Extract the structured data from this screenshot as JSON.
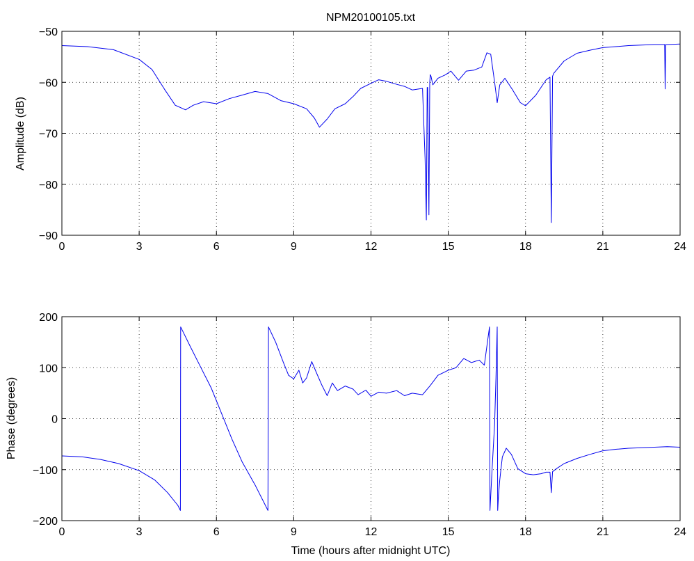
{
  "figure_title": "NPM20100105.txt",
  "colors": {
    "series": "#0000ee",
    "axes": "#000000",
    "background": "#ffffff"
  },
  "chart_data": [
    {
      "type": "line",
      "title": "NPM20100105.txt",
      "xlabel": "",
      "ylabel": "Amplitude (dB)",
      "xlim": [
        0,
        24
      ],
      "ylim": [
        -90,
        -50
      ],
      "xticks": [
        0,
        3,
        6,
        9,
        12,
        15,
        18,
        21,
        24
      ],
      "yticks": [
        -90,
        -80,
        -70,
        -60,
        -50
      ],
      "grid": true,
      "series": [
        {
          "x": [
            0,
            1,
            2,
            3,
            3.5,
            4,
            4.4,
            4.8,
            5.1,
            5.5,
            6,
            6.5,
            7,
            7.5,
            8,
            8.5,
            9,
            9.5,
            9.8,
            10,
            10.3,
            10.6,
            11,
            11.3,
            11.6,
            12,
            12.3,
            12.6,
            13,
            13.3,
            13.6,
            14,
            14.1,
            14.15,
            14.18,
            14.2,
            14.25,
            14.28,
            14.3,
            14.33,
            14.4,
            14.6,
            14.9,
            15.1,
            15.4,
            15.7,
            16,
            16.3,
            16.5,
            16.65,
            16.8,
            16.9,
            17,
            17.2,
            17.5,
            17.8,
            18,
            18.4,
            18.8,
            18.95,
            19,
            19.05,
            19.1,
            19.5,
            20,
            20.5,
            21,
            21.5,
            22,
            22.5,
            23,
            23.4,
            23.42,
            23.44,
            23.5,
            24
          ],
          "y": [
            -52.8,
            -53,
            -53.6,
            -55.5,
            -57.5,
            -61.5,
            -64.5,
            -65.4,
            -64.5,
            -63.8,
            -64.2,
            -63.2,
            -62.5,
            -61.8,
            -62.2,
            -63.6,
            -64.2,
            -65.2,
            -67,
            -68.8,
            -67.2,
            -65.2,
            -64.2,
            -62.8,
            -61.2,
            -60.2,
            -59.5,
            -59.8,
            -60.4,
            -60.8,
            -61.5,
            -61.2,
            -75,
            -87,
            -61,
            -61,
            -86,
            -60,
            -58.5,
            -58.8,
            -60.5,
            -59.2,
            -58.5,
            -57.8,
            -59.6,
            -57.8,
            -57.6,
            -57,
            -54.2,
            -54.5,
            -60,
            -64,
            -60.5,
            -59.2,
            -61.5,
            -64,
            -64.6,
            -62.5,
            -59.5,
            -59,
            -87.5,
            -58.8,
            -58.2,
            -55.8,
            -54.3,
            -53.7,
            -53.2,
            -53,
            -52.8,
            -52.7,
            -52.6,
            -52.6,
            -61.3,
            -52.6,
            -52.6,
            -52.5
          ]
        }
      ]
    },
    {
      "type": "line",
      "title": "",
      "xlabel": "Time (hours after midnight UTC)",
      "ylabel": "Phase (degrees)",
      "xlim": [
        0,
        24
      ],
      "ylim": [
        -200,
        200
      ],
      "xticks": [
        0,
        3,
        6,
        9,
        12,
        15,
        18,
        21,
        24
      ],
      "yticks": [
        -200,
        -100,
        0,
        100,
        200
      ],
      "grid": true,
      "series": [
        {
          "x": [
            0,
            0.8,
            1.5,
            2.2,
            3,
            3.6,
            4.1,
            4.5,
            4.6,
            4.61,
            5,
            5.4,
            5.8,
            6.2,
            6.6,
            7,
            7.5,
            7.9,
            8,
            8.02,
            8.3,
            8.6,
            8.8,
            9,
            9.2,
            9.35,
            9.5,
            9.7,
            9.9,
            10.1,
            10.3,
            10.5,
            10.7,
            11,
            11.3,
            11.5,
            11.8,
            12,
            12.3,
            12.6,
            13,
            13.3,
            13.6,
            14,
            14.3,
            14.6,
            15,
            15.3,
            15.6,
            15.9,
            16.2,
            16.4,
            16.6,
            16.62,
            16.7,
            16.8,
            16.85,
            16.9,
            16.92,
            16.95,
            17,
            17.1,
            17.25,
            17.45,
            17.7,
            18,
            18.3,
            18.6,
            18.8,
            18.95,
            19,
            19.05,
            19.2,
            19.5,
            20,
            20.5,
            21,
            21.5,
            22,
            22.5,
            23,
            23.5,
            24
          ],
          "y": [
            -73,
            -75,
            -80,
            -88,
            -102,
            -120,
            -145,
            -170,
            -180,
            180,
            140,
            100,
            60,
            10,
            -40,
            -85,
            -130,
            -170,
            -180,
            180,
            150,
            110,
            85,
            78,
            95,
            70,
            80,
            112,
            88,
            65,
            45,
            70,
            55,
            64,
            58,
            47,
            56,
            44,
            52,
            50,
            55,
            45,
            50,
            47,
            65,
            85,
            95,
            100,
            118,
            110,
            115,
            105,
            180,
            -180,
            -100,
            -10,
            80,
            180,
            -180,
            -150,
            -120,
            -75,
            -58,
            -70,
            -98,
            -108,
            -110,
            -108,
            -105,
            -105,
            -145,
            -104,
            -98,
            -88,
            -78,
            -70,
            -63,
            -60,
            -58,
            -57,
            -56,
            -55,
            -56
          ]
        }
      ]
    }
  ]
}
